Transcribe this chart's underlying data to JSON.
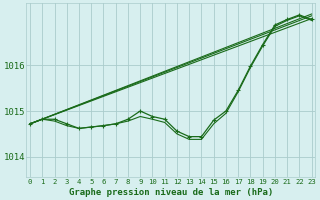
{
  "title": "Graphe pression niveau de la mer (hPa)",
  "background_color": "#d7efef",
  "grid_color": "#aacccc",
  "line_color": "#1a6b1a",
  "x_ticks": [
    0,
    1,
    2,
    3,
    4,
    5,
    6,
    7,
    8,
    9,
    10,
    11,
    12,
    13,
    14,
    15,
    16,
    17,
    18,
    19,
    20,
    21,
    22,
    23
  ],
  "y_ticks": [
    1014,
    1015,
    1016
  ],
  "ylim": [
    1013.55,
    1017.35
  ],
  "xlim": [
    -0.3,
    23.3
  ],
  "straight_lines": [
    [
      [
        0,
        23
      ],
      [
        1014.72,
        1017.12
      ]
    ],
    [
      [
        0,
        23
      ],
      [
        1014.72,
        1017.08
      ]
    ],
    [
      [
        0,
        23
      ],
      [
        1014.72,
        1017.02
      ]
    ]
  ],
  "observed": {
    "x": [
      0,
      1,
      2,
      3,
      4,
      5,
      6,
      7,
      8,
      9,
      10,
      11,
      12,
      13,
      14,
      15,
      16,
      17,
      18,
      19,
      20,
      21,
      22,
      23
    ],
    "y": [
      1014.72,
      1014.82,
      1014.82,
      1014.72,
      1014.62,
      1014.65,
      1014.68,
      1014.72,
      1014.82,
      1015.0,
      1014.88,
      1014.82,
      1014.56,
      1014.44,
      1014.44,
      1014.8,
      1015.0,
      1015.45,
      1015.98,
      1016.45,
      1016.88,
      1017.0,
      1017.1,
      1017.0
    ]
  },
  "zigzag": {
    "x": [
      0,
      1,
      2,
      3,
      4,
      5,
      6,
      7,
      8,
      9,
      10,
      11,
      12,
      13,
      14,
      15,
      16,
      17,
      18,
      19,
      20,
      21,
      22,
      23
    ],
    "y": [
      1014.72,
      1014.82,
      1014.78,
      1014.68,
      1014.62,
      1014.65,
      1014.68,
      1014.72,
      1014.78,
      1014.88,
      1014.82,
      1014.75,
      1014.5,
      1014.38,
      1014.38,
      1014.72,
      1014.95,
      1015.42,
      1015.95,
      1016.42,
      1016.85,
      1016.98,
      1017.08,
      1016.98
    ]
  }
}
